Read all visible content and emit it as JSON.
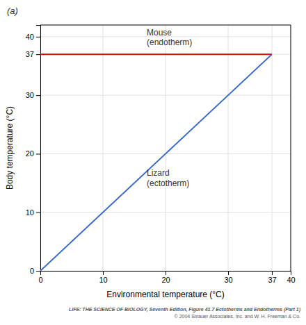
{
  "chart_data": {
    "type": "line",
    "title": "(a)",
    "x_label": "Environmental temperature (°C)",
    "y_label": "Body temperature (°C)",
    "x": [
      0,
      37
    ],
    "series": [
      {
        "color": "#cc1111",
        "values": [
          37,
          37
        ]
      },
      {
        "color": "#3366cc",
        "values": [
          0,
          37
        ]
      }
    ],
    "xlim": [
      0,
      40
    ],
    "ylim": [
      0,
      42
    ],
    "xticks": [
      0,
      10,
      20,
      30,
      37,
      40
    ],
    "yticks": [
      0,
      10,
      20,
      30,
      37,
      40
    ],
    "grid": true,
    "annotations": [
      {
        "text": "Mouse\n(endotherm)",
        "x": 17,
        "y": 41.5
      },
      {
        "text": "Lizard\n(ectotherm)",
        "x": 17,
        "y": 17.5
      }
    ],
    "caption": [
      "LIFE: THE SCIENCE OF BIOLOGY, Seventh Edition, Figure 41.7 Ectotherms and Endotherms (Part 1)",
      "© 2004 Sinauer Associates, Inc. and W. H. Freeman & Co."
    ]
  }
}
